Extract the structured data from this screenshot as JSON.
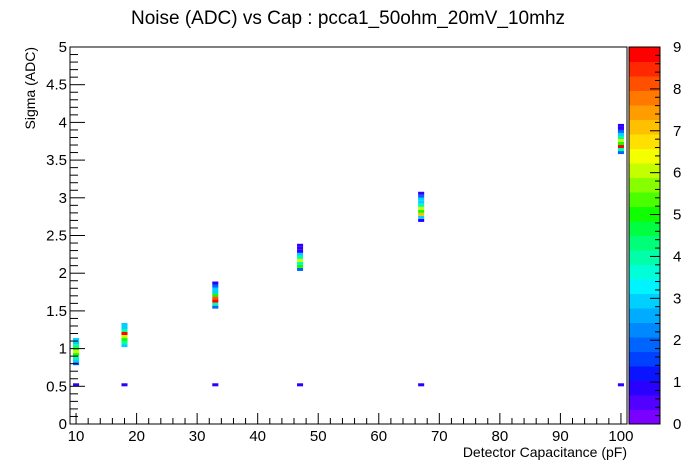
{
  "chart_data": {
    "type": "heatmap",
    "title": "Noise (ADC) vs Cap : pcca1_50ohm_20mV_10mhz",
    "xlabel": "Detector Capacitance (pF)",
    "ylabel": "Sigma (ADC)",
    "xlim": [
      9,
      101
    ],
    "ylim": [
      0,
      5
    ],
    "x_ticks": [
      "10",
      "20",
      "30",
      "40",
      "50",
      "60",
      "70",
      "80",
      "90",
      "100"
    ],
    "y_ticks": [
      "0",
      "0.5",
      "1",
      "1.5",
      "2",
      "2.5",
      "3",
      "3.5",
      "4",
      "4.5",
      "5"
    ],
    "z_ticks": [
      "0",
      "1",
      "2",
      "3",
      "4",
      "5",
      "6",
      "7",
      "8",
      "9"
    ],
    "zlim": [
      0,
      9
    ],
    "bin_width_x": 1,
    "bin_height_y": 0.04,
    "palette": [
      "#7a00ff",
      "#5200ff",
      "#2a00ff",
      "#0a14ff",
      "#0040ff",
      "#0064ff",
      "#0088ff",
      "#00acff",
      "#00d0ff",
      "#00f4ff",
      "#00ffd8",
      "#00ffa8",
      "#00ff78",
      "#00ff40",
      "#10ff00",
      "#4cff00",
      "#88ff00",
      "#c4ff00",
      "#f4ff00",
      "#ffe000",
      "#ffc000",
      "#ff9c00",
      "#ff7800",
      "#ff5000",
      "#ff2800",
      "#ff0000"
    ],
    "series": [
      {
        "x": 10,
        "cells": [
          [
            0.52,
            1
          ],
          [
            0.8,
            2
          ],
          [
            0.84,
            3
          ],
          [
            0.88,
            4
          ],
          [
            0.92,
            5
          ],
          [
            0.96,
            6
          ],
          [
            1.0,
            5
          ],
          [
            1.04,
            4
          ],
          [
            1.08,
            3
          ],
          [
            1.12,
            3
          ]
        ]
      },
      {
        "x": 18,
        "cells": [
          [
            0.52,
            1
          ],
          [
            1.04,
            3
          ],
          [
            1.08,
            4
          ],
          [
            1.12,
            5
          ],
          [
            1.16,
            6
          ],
          [
            1.2,
            9
          ],
          [
            1.24,
            4
          ],
          [
            1.28,
            3
          ],
          [
            1.32,
            3
          ]
        ]
      },
      {
        "x": 33,
        "cells": [
          [
            0.52,
            1
          ],
          [
            1.55,
            2
          ],
          [
            1.59,
            4
          ],
          [
            1.63,
            9
          ],
          [
            1.67,
            8
          ],
          [
            1.71,
            5
          ],
          [
            1.75,
            3
          ],
          [
            1.79,
            3
          ],
          [
            1.83,
            2
          ],
          [
            1.87,
            1
          ]
        ]
      },
      {
        "x": 47,
        "cells": [
          [
            0.52,
            1
          ],
          [
            2.05,
            2
          ],
          [
            2.09,
            5
          ],
          [
            2.13,
            4
          ],
          [
            2.17,
            6
          ],
          [
            2.21,
            4
          ],
          [
            2.25,
            3
          ],
          [
            2.29,
            1
          ],
          [
            2.33,
            1
          ],
          [
            2.37,
            1
          ]
        ]
      },
      {
        "x": 67,
        "cells": [
          [
            0.52,
            1
          ],
          [
            2.7,
            1
          ],
          [
            2.74,
            3
          ],
          [
            2.78,
            7
          ],
          [
            2.82,
            5
          ],
          [
            2.86,
            6
          ],
          [
            2.9,
            4
          ],
          [
            2.94,
            3
          ],
          [
            2.98,
            3
          ],
          [
            3.02,
            2
          ],
          [
            3.06,
            1
          ]
        ]
      },
      {
        "x": 100,
        "cells": [
          [
            0.52,
            1
          ],
          [
            3.6,
            2
          ],
          [
            3.64,
            4
          ],
          [
            3.68,
            9
          ],
          [
            3.72,
            5
          ],
          [
            3.76,
            6
          ],
          [
            3.8,
            4
          ],
          [
            3.84,
            3
          ],
          [
            3.88,
            2
          ],
          [
            3.92,
            1
          ],
          [
            3.96,
            1
          ]
        ]
      }
    ]
  }
}
